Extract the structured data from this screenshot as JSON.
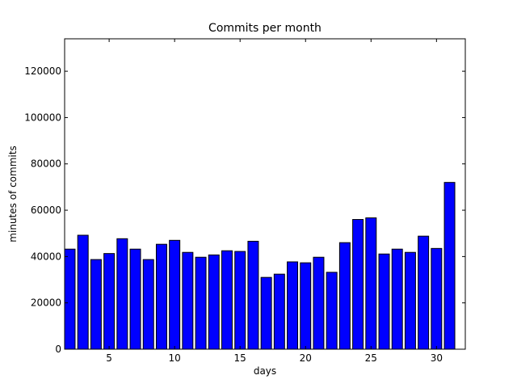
{
  "chart_data": {
    "type": "bar",
    "title": "Commits per month",
    "xlabel": "days",
    "ylabel": "minutes of commits",
    "bar_color": "#0000ff",
    "bar_edge_color": "#000000",
    "grid": false,
    "xlim": [
      1.6,
      32.2
    ],
    "ylim": [
      0,
      134000
    ],
    "xticks": [
      5,
      10,
      15,
      20,
      25,
      30
    ],
    "yticks": [
      0,
      20000,
      40000,
      60000,
      80000,
      100000,
      120000
    ],
    "bar_width": 0.8,
    "x": [
      2,
      3,
      4,
      5,
      6,
      7,
      8,
      9,
      10,
      11,
      12,
      13,
      14,
      15,
      16,
      17,
      18,
      19,
      20,
      21,
      22,
      23,
      24,
      25,
      26,
      27,
      28,
      29,
      30,
      31
    ],
    "values": [
      43200,
      49200,
      38700,
      41300,
      47700,
      43200,
      38700,
      45300,
      47000,
      41800,
      39700,
      40700,
      42500,
      42200,
      46600,
      31000,
      32400,
      37700,
      37300,
      39700,
      33200,
      46000,
      56000,
      56700,
      41100,
      43200,
      41800,
      48800,
      43500,
      72000
    ]
  }
}
